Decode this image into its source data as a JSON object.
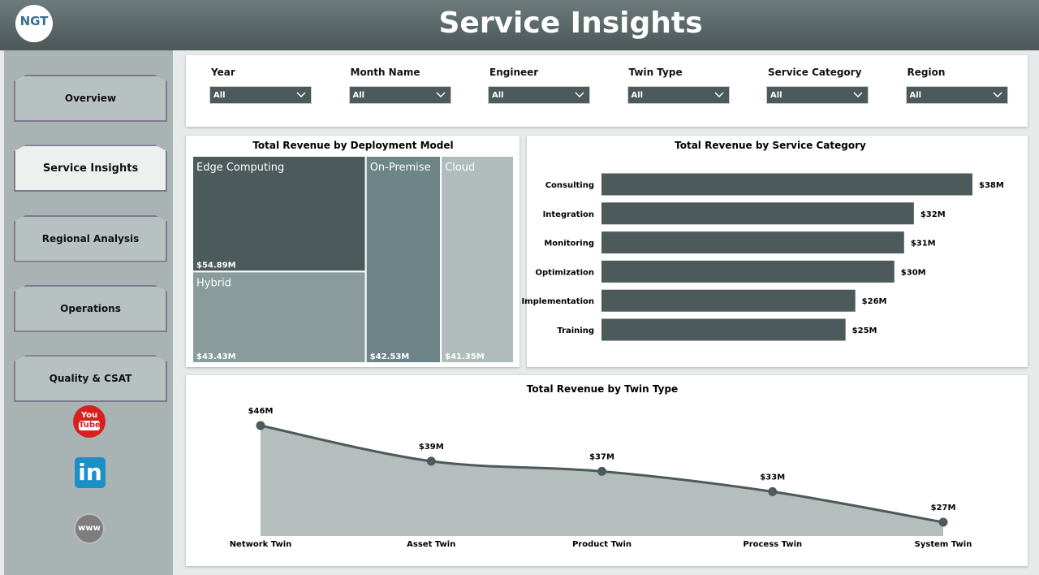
{
  "header": {
    "logo": "NGT",
    "title": "Service Insights"
  },
  "nav": [
    {
      "label": "Overview"
    },
    {
      "label": "Service Insights",
      "active": true
    },
    {
      "label": "Regional Analysis"
    },
    {
      "label": "Operations"
    },
    {
      "label": "Quality & CSAT"
    }
  ],
  "social": {
    "youtube": [
      "You",
      "Tube"
    ],
    "linkedin": "in",
    "web": "www"
  },
  "filters": [
    {
      "label": "Year",
      "value": "All"
    },
    {
      "label": "Month Name",
      "value": "All"
    },
    {
      "label": "Engineer",
      "value": "All"
    },
    {
      "label": "Twin Type",
      "value": "All"
    },
    {
      "label": "Service Category",
      "value": "All"
    },
    {
      "label": "Region",
      "value": "All"
    }
  ],
  "chart_data": [
    {
      "type": "treemap",
      "title": "Total Revenue by Deployment Model",
      "categories": [
        "Edge Computing",
        "Hybrid",
        "On-Premise",
        "Cloud"
      ],
      "values": [
        54.89,
        43.43,
        42.53,
        41.35
      ],
      "value_labels": [
        "$54.89M",
        "$43.43M",
        "$42.53M",
        "$41.35M"
      ],
      "colors": [
        "#4d5a5b",
        "#8a9b9c",
        "#6e8588",
        "#b0bbbb"
      ]
    },
    {
      "type": "hbar",
      "title": "Total Revenue by Service Category",
      "categories": [
        "Consulting",
        "Integration",
        "Monitoring",
        "Optimization",
        "Implementation",
        "Training"
      ],
      "values": [
        38,
        32,
        31,
        30,
        26,
        25
      ],
      "value_labels": [
        "$38M",
        "$32M",
        "$31M",
        "$30M",
        "$26M",
        "$25M"
      ],
      "color": "#4d5a5b"
    },
    {
      "type": "area",
      "title": "Total Revenue by Twin Type",
      "categories": [
        "Network Twin",
        "Asset Twin",
        "Product Twin",
        "Process Twin",
        "System Twin"
      ],
      "values": [
        46,
        39,
        37,
        33,
        27
      ],
      "value_labels": [
        "$46M",
        "$39M",
        "$37M",
        "$33M",
        "$27M"
      ],
      "color": "#4d5a5b",
      "fill": "#b5bdbd"
    }
  ]
}
